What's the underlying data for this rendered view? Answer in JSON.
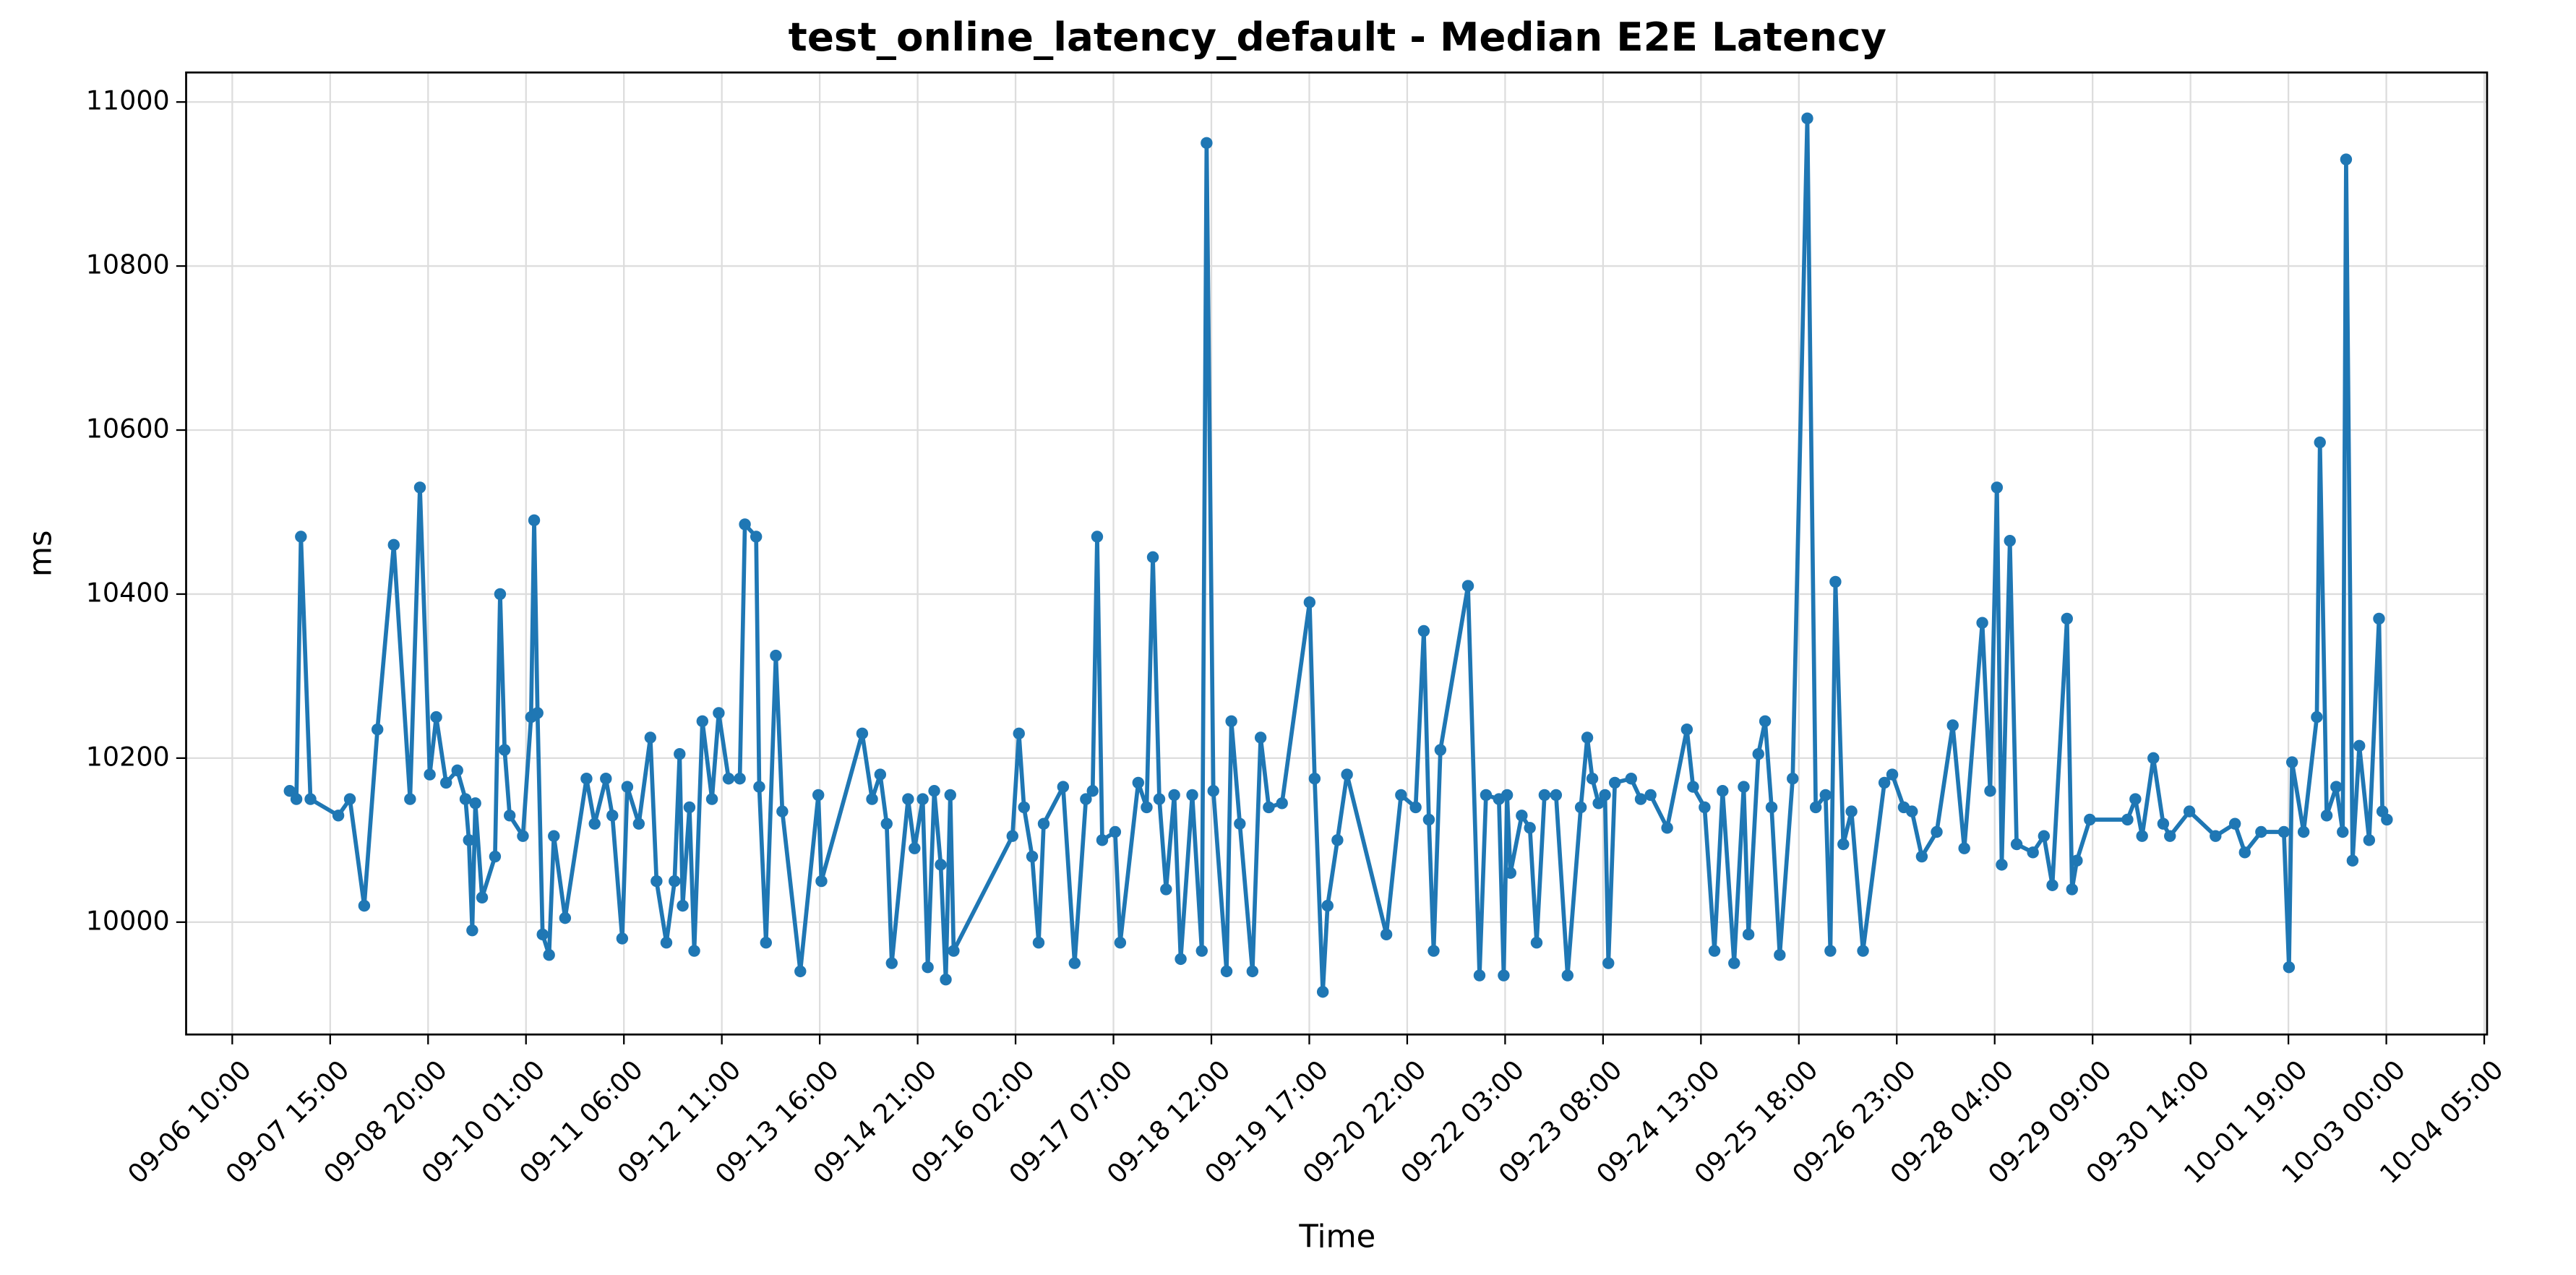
{
  "chart_data": {
    "type": "line",
    "title": "test_online_latency_default - Median E2E Latency",
    "x_label": "Time",
    "y_label": "ms",
    "color": "#1f77b4",
    "grid": true,
    "xlim": [
      "09-05 20:20",
      "10-04 05:50"
    ],
    "xticks": [
      "09-06 10:00",
      "09-07 15:00",
      "09-08 20:00",
      "09-10 01:00",
      "09-11 06:00",
      "09-12 11:00",
      "09-13 16:00",
      "09-14 21:00",
      "09-16 02:00",
      "09-17 07:00",
      "09-18 12:00",
      "09-19 17:00",
      "09-20 22:00",
      "09-22 03:00",
      "09-23 08:00",
      "09-24 13:00",
      "09-25 18:00",
      "09-26 23:00",
      "09-28 04:00",
      "09-29 09:00",
      "09-30 14:00",
      "10-01 19:00",
      "10-03 00:00",
      "10-04 05:00"
    ],
    "ylim": [
      9863,
      11036
    ],
    "yticks": [
      10000,
      10200,
      10400,
      10600,
      10800,
      11000
    ],
    "x": [
      "09-07 03:00",
      "09-07 05:00",
      "09-07 06:20",
      "09-07 09:10",
      "09-07 17:25",
      "09-07 20:50",
      "09-08 01:05",
      "09-08 05:00",
      "09-08 09:50",
      "09-08 14:40",
      "09-08 17:35",
      "09-08 20:30",
      "09-08 22:25",
      "09-09 01:20",
      "09-09 04:40",
      "09-09 07:05",
      "09-09 08:05",
      "09-09 09:05",
      "09-09 10:00",
      "09-09 12:00",
      "09-09 15:50",
      "09-09 17:20",
      "09-09 18:40",
      "09-09 20:10",
      "09-10 00:05",
      "09-10 02:30",
      "09-10 03:25",
      "09-10 04:25",
      "09-10 05:55",
      "09-10 07:50",
      "09-10 09:15",
      "09-10 12:35",
      "09-10 18:55",
      "09-10 21:20",
      "09-11 00:40",
      "09-11 02:35",
      "09-11 05:30",
      "09-11 07:00",
      "09-11 10:25",
      "09-11 13:50",
      "09-11 15:40",
      "09-11 18:35",
      "09-11 21:00",
      "09-11 22:30",
      "09-11 23:25",
      "09-12 01:25",
      "09-12 02:50",
      "09-12 05:15",
      "09-12 08:05",
      "09-12 10:05",
      "09-12 13:00",
      "09-12 16:20",
      "09-12 17:50",
      "09-12 21:10",
      "09-12 22:05",
      "09-13 00:05",
      "09-13 03:00",
      "09-13 04:55",
      "09-13 10:15",
      "09-13 15:35",
      "09-13 16:30",
      "09-14 04:35",
      "09-14 07:30",
      "09-14 09:55",
      "09-14 11:50",
      "09-14 13:20",
      "09-14 18:10",
      "09-14 20:05",
      "09-14 22:30",
      "09-15 00:00",
      "09-15 01:55",
      "09-15 03:50",
      "09-15 05:20",
      "09-15 06:40",
      "09-15 07:40",
      "09-16 01:05",
      "09-16 03:00",
      "09-16 04:30",
      "09-16 06:55",
      "09-16 08:50",
      "09-16 10:20",
      "09-16 16:05",
      "09-16 19:30",
      "09-16 22:50",
      "09-17 00:50",
      "09-17 02:10",
      "09-17 03:40",
      "09-17 07:30",
      "09-17 09:00",
      "09-17 14:20",
      "09-17 16:50",
      "09-17 18:40",
      "09-17 20:35",
      "09-17 22:35",
      "09-18 01:00",
      "09-18 02:55",
      "09-18 06:20",
      "09-18 09:10",
      "09-18 10:35",
      "09-18 12:35",
      "09-18 16:30",
      "09-18 17:55",
      "09-18 20:25",
      "09-19 00:10",
      "09-19 02:35",
      "09-19 05:00",
      "09-19 08:55",
      "09-19 17:05",
      "09-19 18:35",
      "09-19 21:00",
      "09-19 22:25",
      "09-20 01:20",
      "09-20 04:10",
      "09-20 15:50",
      "09-20 20:10",
      "09-21 00:30",
      "09-21 02:55",
      "09-21 04:25",
      "09-21 05:50",
      "09-21 07:50",
      "09-21 16:00",
      "09-21 19:25",
      "09-21 21:20",
      "09-22 01:10",
      "09-22 02:35",
      "09-22 03:35",
      "09-22 04:35",
      "09-22 07:55",
      "09-22 10:20",
      "09-22 12:20",
      "09-22 14:40",
      "09-22 18:05",
      "09-22 21:30",
      "09-23 01:25",
      "09-23 03:20",
      "09-23 04:50",
      "09-23 06:40",
      "09-23 08:35",
      "09-23 09:35",
      "09-23 11:30",
      "09-23 16:20",
      "09-23 19:10",
      "09-23 22:05",
      "09-24 03:00",
      "09-24 08:50",
      "09-24 10:40",
      "09-24 14:05",
      "09-24 17:00",
      "09-24 19:25",
      "09-24 22:50",
      "09-25 01:40",
      "09-25 03:05",
      "09-25 06:00",
      "09-25 08:00",
      "09-25 09:55",
      "09-25 12:20",
      "09-25 16:10",
      "09-25 20:30",
      "09-25 23:00",
      "09-26 01:55",
      "09-26 03:20",
      "09-26 04:50",
      "09-26 07:10",
      "09-26 09:35",
      "09-26 13:00",
      "09-26 19:20",
      "09-26 21:40",
      "09-27 01:05",
      "09-27 03:30",
      "09-27 06:25",
      "09-27 10:50",
      "09-27 15:35",
      "09-27 19:00",
      "09-28 00:20",
      "09-28 02:40",
      "09-28 04:40",
      "09-28 06:05",
      "09-28 08:30",
      "09-28 10:30",
      "09-28 15:20",
      "09-28 18:35",
      "09-28 21:05",
      "09-29 01:25",
      "09-29 02:55",
      "09-29 04:20",
      "09-29 08:10",
      "09-29 19:20",
      "09-29 21:40",
      "09-29 23:40",
      "09-30 03:00",
      "09-30 05:55",
      "09-30 07:55",
      "09-30 13:40",
      "09-30 21:25",
      "10-01 03:10",
      "10-01 06:05",
      "10-01 10:55",
      "10-01 17:40",
      "10-01 19:10",
      "10-01 20:05",
      "10-01 23:30",
      "10-02 03:25",
      "10-02 04:20",
      "10-02 06:20",
      "10-02 09:10",
      "10-02 11:05",
      "10-02 12:05",
      "10-02 14:00",
      "10-02 16:00",
      "10-02 18:55",
      "10-02 21:50",
      "10-02 22:50",
      "10-03 00:10"
    ],
    "values": [
      10160,
      10150,
      10470,
      10150,
      10130,
      10150,
      10020,
      10235,
      10460,
      10150,
      10530,
      10180,
      10250,
      10170,
      10185,
      10150,
      10100,
      9990,
      10145,
      10030,
      10080,
      10400,
      10210,
      10130,
      10105,
      10250,
      10490,
      10255,
      9985,
      9960,
      10105,
      10005,
      10175,
      10120,
      10175,
      10130,
      9980,
      10165,
      10120,
      10225,
      10050,
      9975,
      10050,
      10205,
      10020,
      10140,
      9965,
      10245,
      10150,
      10255,
      10175,
      10175,
      10485,
      10470,
      10165,
      9975,
      10325,
      10135,
      9940,
      10155,
      10050,
      10230,
      10150,
      10180,
      10120,
      9950,
      10150,
      10090,
      10150,
      9945,
      10160,
      10070,
      9930,
      10155,
      9965,
      10105,
      10230,
      10140,
      10080,
      9975,
      10120,
      10165,
      9950,
      10150,
      10160,
      10470,
      10100,
      10110,
      9975,
      10170,
      10140,
      10445,
      10150,
      10040,
      10155,
      9955,
      10155,
      9965,
      10950,
      10160,
      9940,
      10245,
      10120,
      9940,
      10225,
      10140,
      10145,
      10390,
      10175,
      9915,
      10020,
      10100,
      10180,
      9985,
      10155,
      10140,
      10355,
      10125,
      9965,
      10210,
      10410,
      9935,
      10155,
      10150,
      9935,
      10155,
      10060,
      10130,
      10115,
      9975,
      10155,
      10155,
      9935,
      10140,
      10225,
      10175,
      10145,
      10155,
      9950,
      10170,
      10175,
      10150,
      10155,
      10115,
      10235,
      10165,
      10140,
      9965,
      10160,
      9950,
      10165,
      9985,
      10205,
      10245,
      10140,
      9960,
      10175,
      10980,
      10140,
      10155,
      9965,
      10415,
      10095,
      10135,
      9965,
      10170,
      10180,
      10140,
      10135,
      10080,
      10110,
      10240,
      10090,
      10365,
      10160,
      10530,
      10070,
      10465,
      10095,
      10085,
      10105,
      10045,
      10370,
      10040,
      10075,
      10125,
      10125,
      10150,
      10105,
      10200,
      10120,
      10105,
      10135,
      10105,
      10120,
      10085,
      10110,
      10110,
      9945,
      10195,
      10110,
      10250,
      10585,
      10130,
      10165,
      10110,
      10930,
      10075,
      10215,
      10100,
      10370,
      10135,
      10125
    ]
  }
}
